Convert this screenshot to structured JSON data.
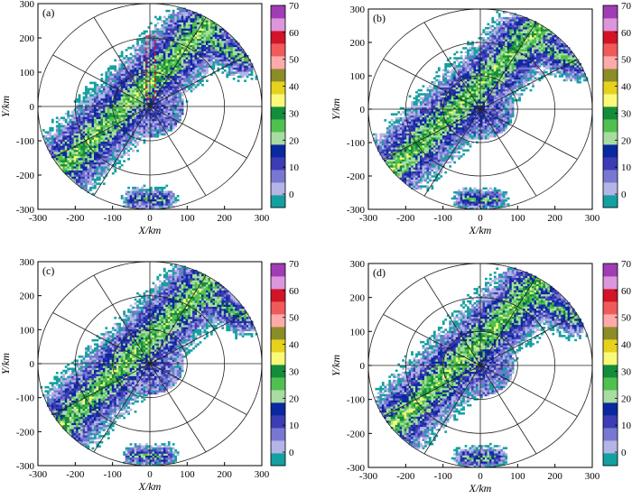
{
  "chart_data": [
    {
      "type": "heatmap",
      "panel_label": "(a)",
      "xlabel": "X/km",
      "ylabel": "Y/km",
      "xlim": [
        -300,
        300
      ],
      "ylim": [
        -300,
        300
      ],
      "xticks": [
        "-300",
        "-200",
        "-100",
        "0",
        "100",
        "200",
        "300"
      ],
      "yticks": [
        "300",
        "200",
        "100",
        "0",
        "-100",
        "-200",
        "-300"
      ],
      "range_rings_km": [
        100,
        200,
        300
      ],
      "azimuth_spoke_step_deg": 30,
      "annotation": "dashed red box",
      "colorbar": {
        "ticks": [
          "70",
          "60",
          "50",
          "40",
          "30",
          "20",
          "10",
          "0"
        ],
        "min": -5,
        "max": 70,
        "step": 5,
        "colors": [
          "#14a0a0",
          "#b4b4e6",
          "#7878d2",
          "#3c3cb4",
          "#0a28a0",
          "#a8dca0",
          "#50c050",
          "#148c3c",
          "#fafa78",
          "#e6d21e",
          "#8c8c28",
          "#ffaaaa",
          "#f05a5a",
          "#d21428",
          "#dc96dc",
          "#a03cb4"
        ]
      }
    },
    {
      "type": "heatmap",
      "panel_label": "(b)",
      "xlabel": "X/km",
      "ylabel": "Y/km",
      "xlim": [
        -300,
        300
      ],
      "ylim": [
        -300,
        300
      ],
      "xticks": [
        "-300",
        "-200",
        "-100",
        "0",
        "100",
        "200",
        "300"
      ],
      "yticks": [
        "300",
        "200",
        "100",
        "0",
        "-100",
        "-200",
        "-300"
      ],
      "range_rings_km": [
        100,
        200,
        300
      ],
      "azimuth_spoke_step_deg": 30,
      "colorbar": {
        "ticks": [
          "70",
          "60",
          "50",
          "40",
          "30",
          "20",
          "10",
          "0"
        ],
        "min": -5,
        "max": 70,
        "step": 5,
        "colors": [
          "#14a0a0",
          "#b4b4e6",
          "#7878d2",
          "#3c3cb4",
          "#0a28a0",
          "#a8dca0",
          "#50c050",
          "#148c3c",
          "#fafa78",
          "#e6d21e",
          "#8c8c28",
          "#ffaaaa",
          "#f05a5a",
          "#d21428",
          "#dc96dc",
          "#a03cb4"
        ]
      }
    },
    {
      "type": "heatmap",
      "panel_label": "(c)",
      "xlabel": "X/km",
      "ylabel": "Y/km",
      "xlim": [
        -300,
        300
      ],
      "ylim": [
        -300,
        300
      ],
      "xticks": [
        "-300",
        "-200",
        "-100",
        "0",
        "100",
        "200",
        "300"
      ],
      "yticks": [
        "300",
        "200",
        "100",
        "0",
        "-100",
        "-200",
        "-300"
      ],
      "range_rings_km": [
        100,
        200,
        300
      ],
      "azimuth_spoke_step_deg": 30,
      "colorbar": {
        "ticks": [
          "70",
          "60",
          "50",
          "40",
          "30",
          "20",
          "10",
          "0"
        ],
        "min": -5,
        "max": 70,
        "step": 5,
        "colors": [
          "#14a0a0",
          "#b4b4e6",
          "#7878d2",
          "#3c3cb4",
          "#0a28a0",
          "#a8dca0",
          "#50c050",
          "#148c3c",
          "#fafa78",
          "#e6d21e",
          "#8c8c28",
          "#ffaaaa",
          "#f05a5a",
          "#d21428",
          "#dc96dc",
          "#a03cb4"
        ]
      }
    },
    {
      "type": "heatmap",
      "panel_label": "(d)",
      "xlabel": "X/km",
      "ylabel": "Y/km",
      "xlim": [
        -300,
        300
      ],
      "ylim": [
        -300,
        300
      ],
      "xticks": [
        "-300",
        "-200",
        "-100",
        "0",
        "100",
        "200",
        "300"
      ],
      "yticks": [
        "300",
        "200",
        "100",
        "0",
        "-100",
        "-200",
        "-300"
      ],
      "range_rings_km": [
        100,
        200,
        300
      ],
      "azimuth_spoke_step_deg": 30,
      "colorbar": {
        "ticks": [
          "70",
          "60",
          "50",
          "40",
          "30",
          "20",
          "10",
          "0"
        ],
        "min": -5,
        "max": 70,
        "step": 5,
        "colors": [
          "#14a0a0",
          "#b4b4e6",
          "#7878d2",
          "#3c3cb4",
          "#0a28a0",
          "#a8dca0",
          "#50c050",
          "#148c3c",
          "#fafa78",
          "#e6d21e",
          "#8c8c28",
          "#ffaaaa",
          "#f05a5a",
          "#d21428",
          "#dc96dc",
          "#a03cb4"
        ]
      }
    }
  ]
}
